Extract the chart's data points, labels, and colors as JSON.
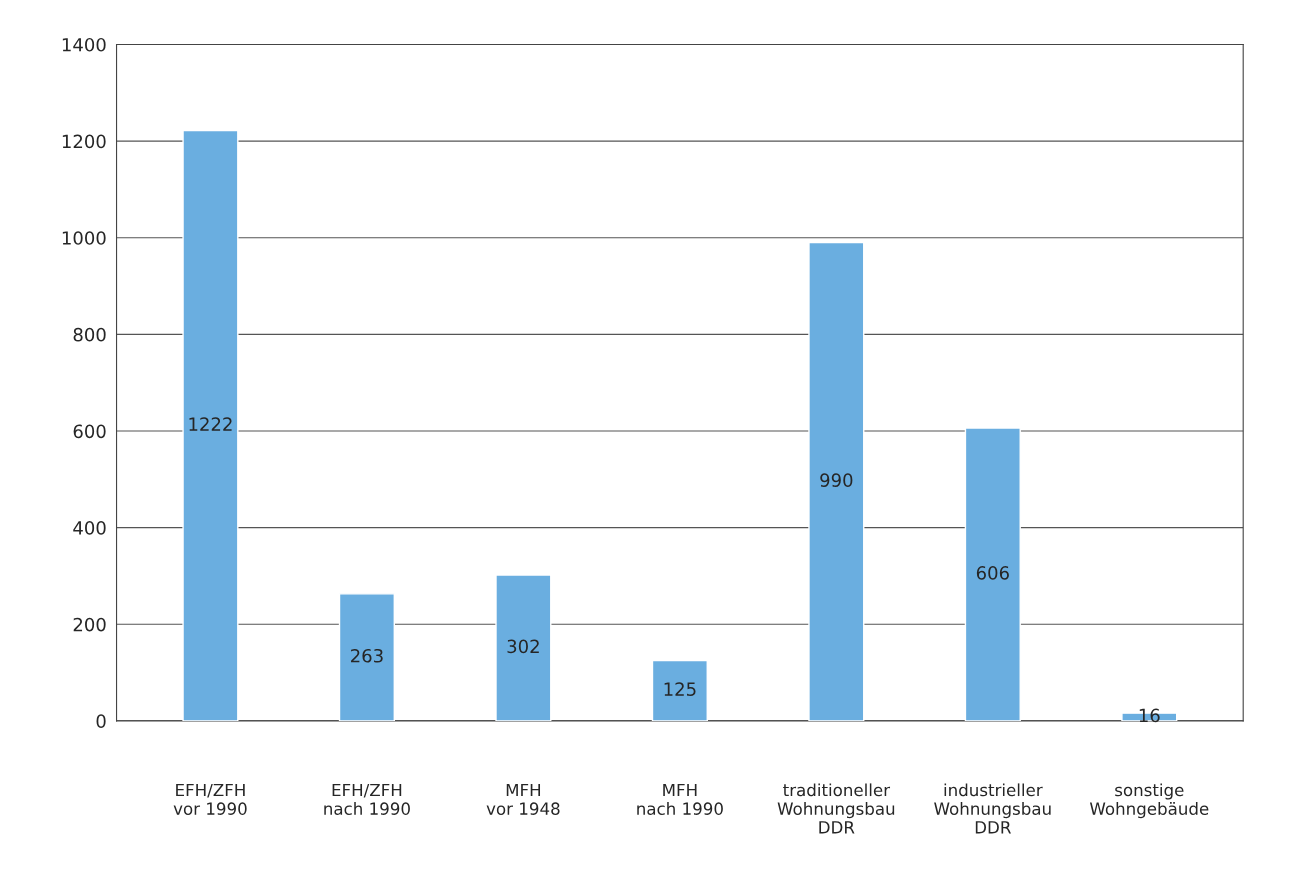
{
  "chart_data": {
    "type": "bar",
    "categories": [
      "EFH/ZFH\nvor 1990",
      "EFH/ZFH\nnach 1990",
      "MFH\nvor 1948",
      "MFH\nnach 1990",
      "traditioneller\nWohnungsbau\nDDR",
      "industrieller\nWohnungsbau\nDDR",
      "sonstige\nWohngebäude"
    ],
    "values": [
      1222,
      263,
      302,
      125,
      990,
      606,
      16
    ],
    "color": "#6aaee0",
    "ylim": [
      0,
      1400
    ],
    "yticks": [
      0,
      200,
      400,
      600,
      800,
      1000,
      1200,
      1400
    ],
    "grid": "y",
    "data_labels": true
  }
}
